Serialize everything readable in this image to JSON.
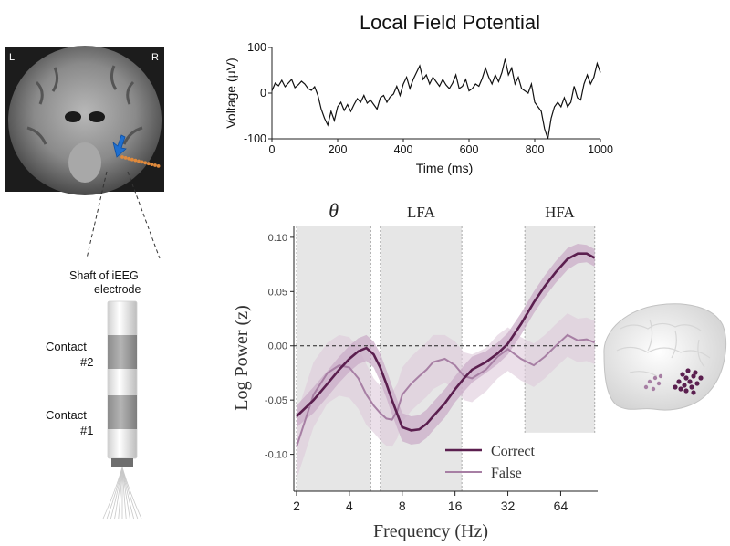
{
  "mri": {
    "left_label": "L",
    "right_label": "R"
  },
  "electrode": {
    "shaft_label_line1": "Shaft of iEEG",
    "shaft_label_line2": "electrode",
    "contact2_line1": "Contact",
    "contact2_line2": "#2",
    "contact1_line1": "Contact",
    "contact1_line2": "#1"
  },
  "colors": {
    "correct": "#5b1f4f",
    "correct_band": "#c9a9c6",
    "false": "#a77fa4",
    "false_band": "#ddc9db",
    "band_shade": "#e6e6e6",
    "arrow": "#1e6fd0",
    "contacts": "#e08a3c"
  },
  "chart_data": [
    {
      "type": "line",
      "title": "Local Field Potential",
      "xlabel": "Time (ms)",
      "ylabel": "Voltage (μV)",
      "xlim": [
        0,
        1000
      ],
      "ylim": [
        -100,
        100
      ],
      "xticks": [
        "0",
        "200",
        "400",
        "600",
        "800",
        "1000"
      ],
      "yticks": [
        "100",
        "0",
        "-100"
      ],
      "series": [
        {
          "x": [
            0,
            10,
            20,
            30,
            40,
            50,
            60,
            70,
            80,
            90,
            100,
            110,
            120,
            130,
            140,
            150,
            160,
            170,
            180,
            190,
            200,
            210,
            220,
            230,
            240,
            250,
            260,
            270,
            280,
            290,
            300,
            310,
            320,
            330,
            340,
            350,
            360,
            370,
            380,
            390,
            400,
            410,
            420,
            430,
            440,
            450,
            460,
            470,
            480,
            490,
            500,
            510,
            520,
            530,
            540,
            550,
            560,
            570,
            580,
            590,
            600,
            610,
            620,
            630,
            640,
            650,
            660,
            670,
            680,
            690,
            700,
            710,
            720,
            730,
            740,
            750,
            760,
            770,
            780,
            790,
            800,
            810,
            820,
            830,
            840,
            850,
            860,
            870,
            880,
            890,
            900,
            910,
            920,
            930,
            940,
            950,
            960,
            970,
            980,
            990,
            1000
          ],
          "y": [
            5,
            22,
            16,
            28,
            14,
            22,
            30,
            12,
            18,
            26,
            20,
            10,
            6,
            14,
            -5,
            -35,
            -55,
            -70,
            -40,
            -60,
            -30,
            -20,
            -38,
            -25,
            -40,
            -25,
            -12,
            -20,
            -5,
            -22,
            -15,
            -25,
            -35,
            -10,
            -5,
            -20,
            -8,
            -2,
            15,
            -5,
            20,
            35,
            10,
            30,
            45,
            60,
            30,
            40,
            20,
            35,
            25,
            15,
            30,
            18,
            10,
            22,
            40,
            10,
            15,
            30,
            5,
            10,
            20,
            15,
            32,
            55,
            35,
            20,
            40,
            25,
            45,
            75,
            40,
            55,
            20,
            35,
            10,
            5,
            0,
            20,
            -20,
            -30,
            -40,
            -78,
            -100,
            -55,
            -30,
            -20,
            -30,
            -10,
            -30,
            -20,
            15,
            -10,
            -15,
            20,
            40,
            20,
            35,
            65,
            45
          ]
        }
      ]
    },
    {
      "type": "line",
      "xlabel": "Frequency (Hz)",
      "ylabel": "Log Power (z)",
      "xscale": "log2",
      "xlim": [
        1.93,
        104
      ],
      "ylim": [
        -0.134,
        0.11
      ],
      "xticks": [
        2,
        4,
        8,
        16,
        32,
        64
      ],
      "xtick_labels": [
        "2",
        "4",
        "8",
        "16",
        "32",
        "64"
      ],
      "yticks": [
        0.1,
        0.05,
        0.0,
        -0.05,
        -0.1
      ],
      "ytick_labels": [
        "0.10",
        "0.05",
        "0.00",
        "-0.05",
        "-0.10"
      ],
      "zero_line": "dashed",
      "bands": [
        {
          "label": "θ",
          "from": 2,
          "to": 5.3
        },
        {
          "label": "LFA",
          "from": 6,
          "to": 17.5
        },
        {
          "label": "HFA",
          "from": 40,
          "to": 100,
          "ymin": -0.08
        }
      ],
      "legend": "bottom-right",
      "series": [
        {
          "name": "Correct",
          "x": [
            2,
            2.5,
            3,
            3.5,
            4,
            4.5,
            5,
            5.5,
            6,
            6.5,
            7,
            7.5,
            8,
            9,
            10,
            11,
            12,
            14,
            16,
            18,
            20,
            24,
            28,
            32,
            38,
            45,
            52,
            60,
            70,
            80,
            90,
            100
          ],
          "y": [
            -0.065,
            -0.05,
            -0.035,
            -0.022,
            -0.012,
            -0.005,
            -0.002,
            -0.008,
            -0.02,
            -0.035,
            -0.05,
            -0.063,
            -0.075,
            -0.078,
            -0.077,
            -0.072,
            -0.065,
            -0.053,
            -0.04,
            -0.03,
            -0.022,
            -0.015,
            -0.007,
            0.002,
            0.02,
            0.04,
            0.055,
            0.068,
            0.08,
            0.085,
            0.085,
            0.081
          ],
          "ci": [
            0.01,
            0.012,
            0.012,
            0.012,
            0.012,
            0.012,
            0.012,
            0.012,
            0.013,
            0.013,
            0.013,
            0.013,
            0.013,
            0.013,
            0.013,
            0.013,
            0.013,
            0.013,
            0.012,
            0.012,
            0.012,
            0.01,
            0.01,
            0.01,
            0.01,
            0.01,
            0.01,
            0.01,
            0.01,
            0.009,
            0.008,
            0.008
          ]
        },
        {
          "name": "False",
          "x": [
            2,
            2.5,
            3,
            3.5,
            4,
            4.5,
            5,
            5.5,
            6,
            6.5,
            7,
            7.5,
            8,
            9,
            10,
            11,
            12,
            14,
            16,
            18,
            20,
            24,
            28,
            32,
            38,
            45,
            52,
            60,
            70,
            80,
            90,
            100
          ],
          "y": [
            -0.093,
            -0.045,
            -0.025,
            -0.018,
            -0.02,
            -0.03,
            -0.045,
            -0.055,
            -0.062,
            -0.067,
            -0.068,
            -0.06,
            -0.045,
            -0.035,
            -0.028,
            -0.022,
            -0.015,
            -0.012,
            -0.018,
            -0.028,
            -0.03,
            -0.022,
            -0.01,
            -0.003,
            -0.012,
            -0.018,
            -0.01,
            0.0,
            0.01,
            0.005,
            0.006,
            0.003
          ],
          "ci": [
            0.03,
            0.03,
            0.028,
            0.028,
            0.028,
            0.028,
            0.028,
            0.025,
            0.025,
            0.025,
            0.025,
            0.025,
            0.025,
            0.025,
            0.025,
            0.025,
            0.025,
            0.022,
            0.022,
            0.022,
            0.022,
            0.02,
            0.02,
            0.02,
            0.02,
            0.02,
            0.02,
            0.02,
            0.02,
            0.02,
            0.02,
            0.02
          ]
        }
      ]
    }
  ]
}
